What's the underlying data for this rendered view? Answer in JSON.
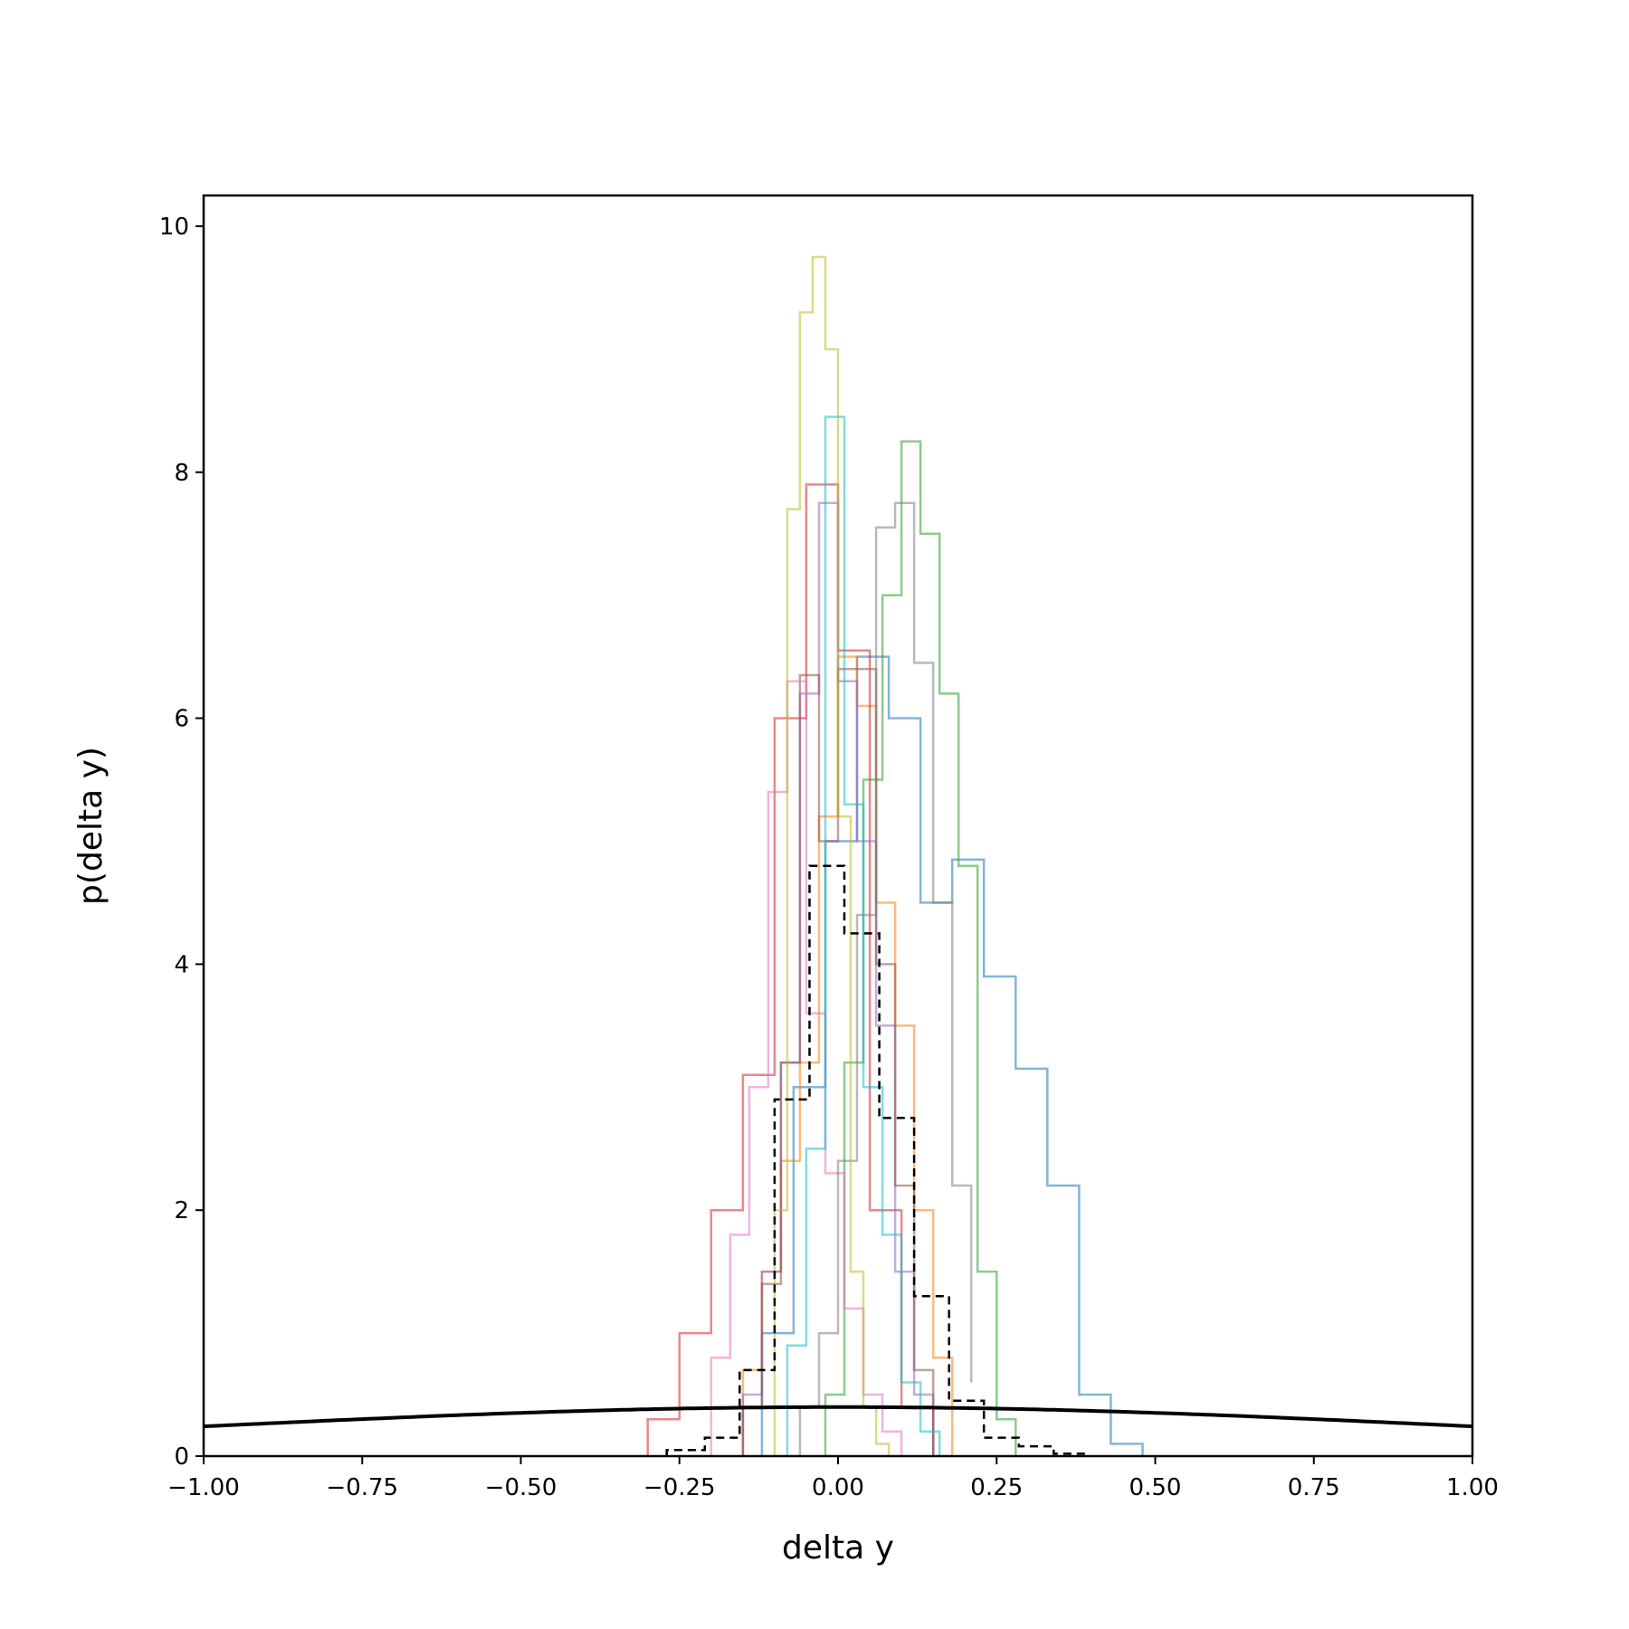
{
  "chart_data": {
    "type": "line",
    "title": "",
    "xlabel": "delta y",
    "ylabel": "p(delta y)",
    "xlim": [
      -1.0,
      1.0
    ],
    "ylim": [
      0,
      10.25
    ],
    "xticks": [
      -1.0,
      -0.75,
      -0.5,
      -0.25,
      0.0,
      0.25,
      0.5,
      0.75,
      1.0
    ],
    "xtick_labels": [
      "−1.00",
      "−0.75",
      "−0.50",
      "−0.25",
      "0.00",
      "0.25",
      "0.50",
      "0.75",
      "1.00"
    ],
    "yticks": [
      0,
      2,
      4,
      6,
      8,
      10
    ],
    "ytick_labels": [
      "0",
      "2",
      "4",
      "6",
      "8",
      "10"
    ],
    "grid": false,
    "legend": "none",
    "histograms": [
      {
        "color": "#1f77b4",
        "edges": [
          -0.12,
          -0.07,
          -0.02,
          0.03,
          0.08,
          0.13,
          0.18,
          0.23,
          0.28,
          0.33,
          0.38,
          0.43,
          0.48
        ],
        "heights": [
          1.0,
          3.0,
          5.0,
          6.5,
          6.0,
          4.5,
          4.85,
          3.9,
          3.15,
          2.2,
          0.5,
          0.1
        ]
      },
      {
        "color": "#ff7f0e",
        "edges": [
          -0.15,
          -0.12,
          -0.09,
          -0.06,
          -0.03,
          0.0,
          0.03,
          0.06,
          0.09,
          0.12,
          0.15,
          0.18
        ],
        "heights": [
          0.7,
          1.5,
          2.4,
          3.2,
          5.2,
          6.5,
          6.1,
          4.5,
          3.5,
          2.0,
          0.8
        ]
      },
      {
        "color": "#2ca02c",
        "edges": [
          -0.02,
          0.01,
          0.04,
          0.07,
          0.1,
          0.13,
          0.16,
          0.19,
          0.22,
          0.25,
          0.28
        ],
        "heights": [
          0.5,
          3.2,
          5.5,
          7.0,
          8.25,
          7.5,
          6.2,
          4.8,
          1.5,
          0.3
        ]
      },
      {
        "color": "#d62728",
        "edges": [
          -0.3,
          -0.25,
          -0.2,
          -0.15,
          -0.1,
          -0.05,
          0.0,
          0.05,
          0.1,
          0.15
        ],
        "heights": [
          0.3,
          1.0,
          2.0,
          3.1,
          6.0,
          7.9,
          6.55,
          2.0,
          0.4
        ]
      },
      {
        "color": "#9467bd",
        "edges": [
          -0.15,
          -0.12,
          -0.09,
          -0.06,
          -0.03,
          0.0,
          0.03,
          0.06,
          0.09,
          0.12,
          0.15
        ],
        "heights": [
          0.5,
          1.5,
          3.2,
          6.2,
          7.75,
          6.3,
          5.0,
          3.5,
          1.5,
          0.5
        ]
      },
      {
        "color": "#8c564b",
        "edges": [
          -0.15,
          -0.12,
          -0.09,
          -0.06,
          -0.03,
          0.0,
          0.03,
          0.06,
          0.09,
          0.12,
          0.15
        ],
        "heights": [
          0.4,
          1.4,
          3.2,
          6.35,
          5.0,
          6.4,
          6.4,
          4.0,
          2.2,
          0.7
        ]
      },
      {
        "color": "#e377c2",
        "edges": [
          -0.2,
          -0.17,
          -0.14,
          -0.11,
          -0.08,
          -0.05,
          -0.02,
          0.01,
          0.04,
          0.07,
          0.1
        ],
        "heights": [
          0.8,
          1.8,
          3.0,
          5.4,
          6.3,
          3.6,
          2.3,
          1.2,
          0.5,
          0.2
        ]
      },
      {
        "color": "#7f7f7f",
        "edges": [
          -0.06,
          -0.03,
          0.0,
          0.03,
          0.06,
          0.09,
          0.12,
          0.15,
          0.18,
          0.21
        ],
        "heights": [
          0.4,
          1.0,
          2.4,
          4.4,
          7.55,
          7.75,
          6.45,
          4.5,
          2.2,
          0.6
        ]
      },
      {
        "color": "#bcbd22",
        "edges": [
          -0.1,
          -0.08,
          -0.06,
          -0.04,
          -0.02,
          0.0,
          0.02,
          0.04,
          0.06,
          0.08
        ],
        "heights": [
          2.0,
          7.7,
          9.3,
          9.75,
          9.0,
          5.2,
          1.5,
          0.4,
          0.1
        ]
      },
      {
        "color": "#17becf",
        "edges": [
          -0.08,
          -0.05,
          -0.02,
          0.01,
          0.04,
          0.07,
          0.1,
          0.13,
          0.16
        ],
        "heights": [
          0.9,
          2.5,
          8.45,
          5.3,
          3.0,
          1.8,
          0.6,
          0.2
        ]
      }
    ],
    "dashed_histogram": {
      "color": "#000000",
      "edges": [
        -0.27,
        -0.21,
        -0.155,
        -0.1,
        -0.045,
        0.01,
        0.065,
        0.12,
        0.175,
        0.23,
        0.285,
        0.34,
        0.395
      ],
      "heights": [
        0.05,
        0.15,
        0.7,
        2.9,
        4.8,
        4.25,
        2.75,
        1.3,
        0.45,
        0.15,
        0.08,
        0.02
      ]
    },
    "reference_curve": {
      "type": "normal_pdf",
      "mean": 0.0,
      "std": 1.0,
      "color": "#000000"
    }
  }
}
